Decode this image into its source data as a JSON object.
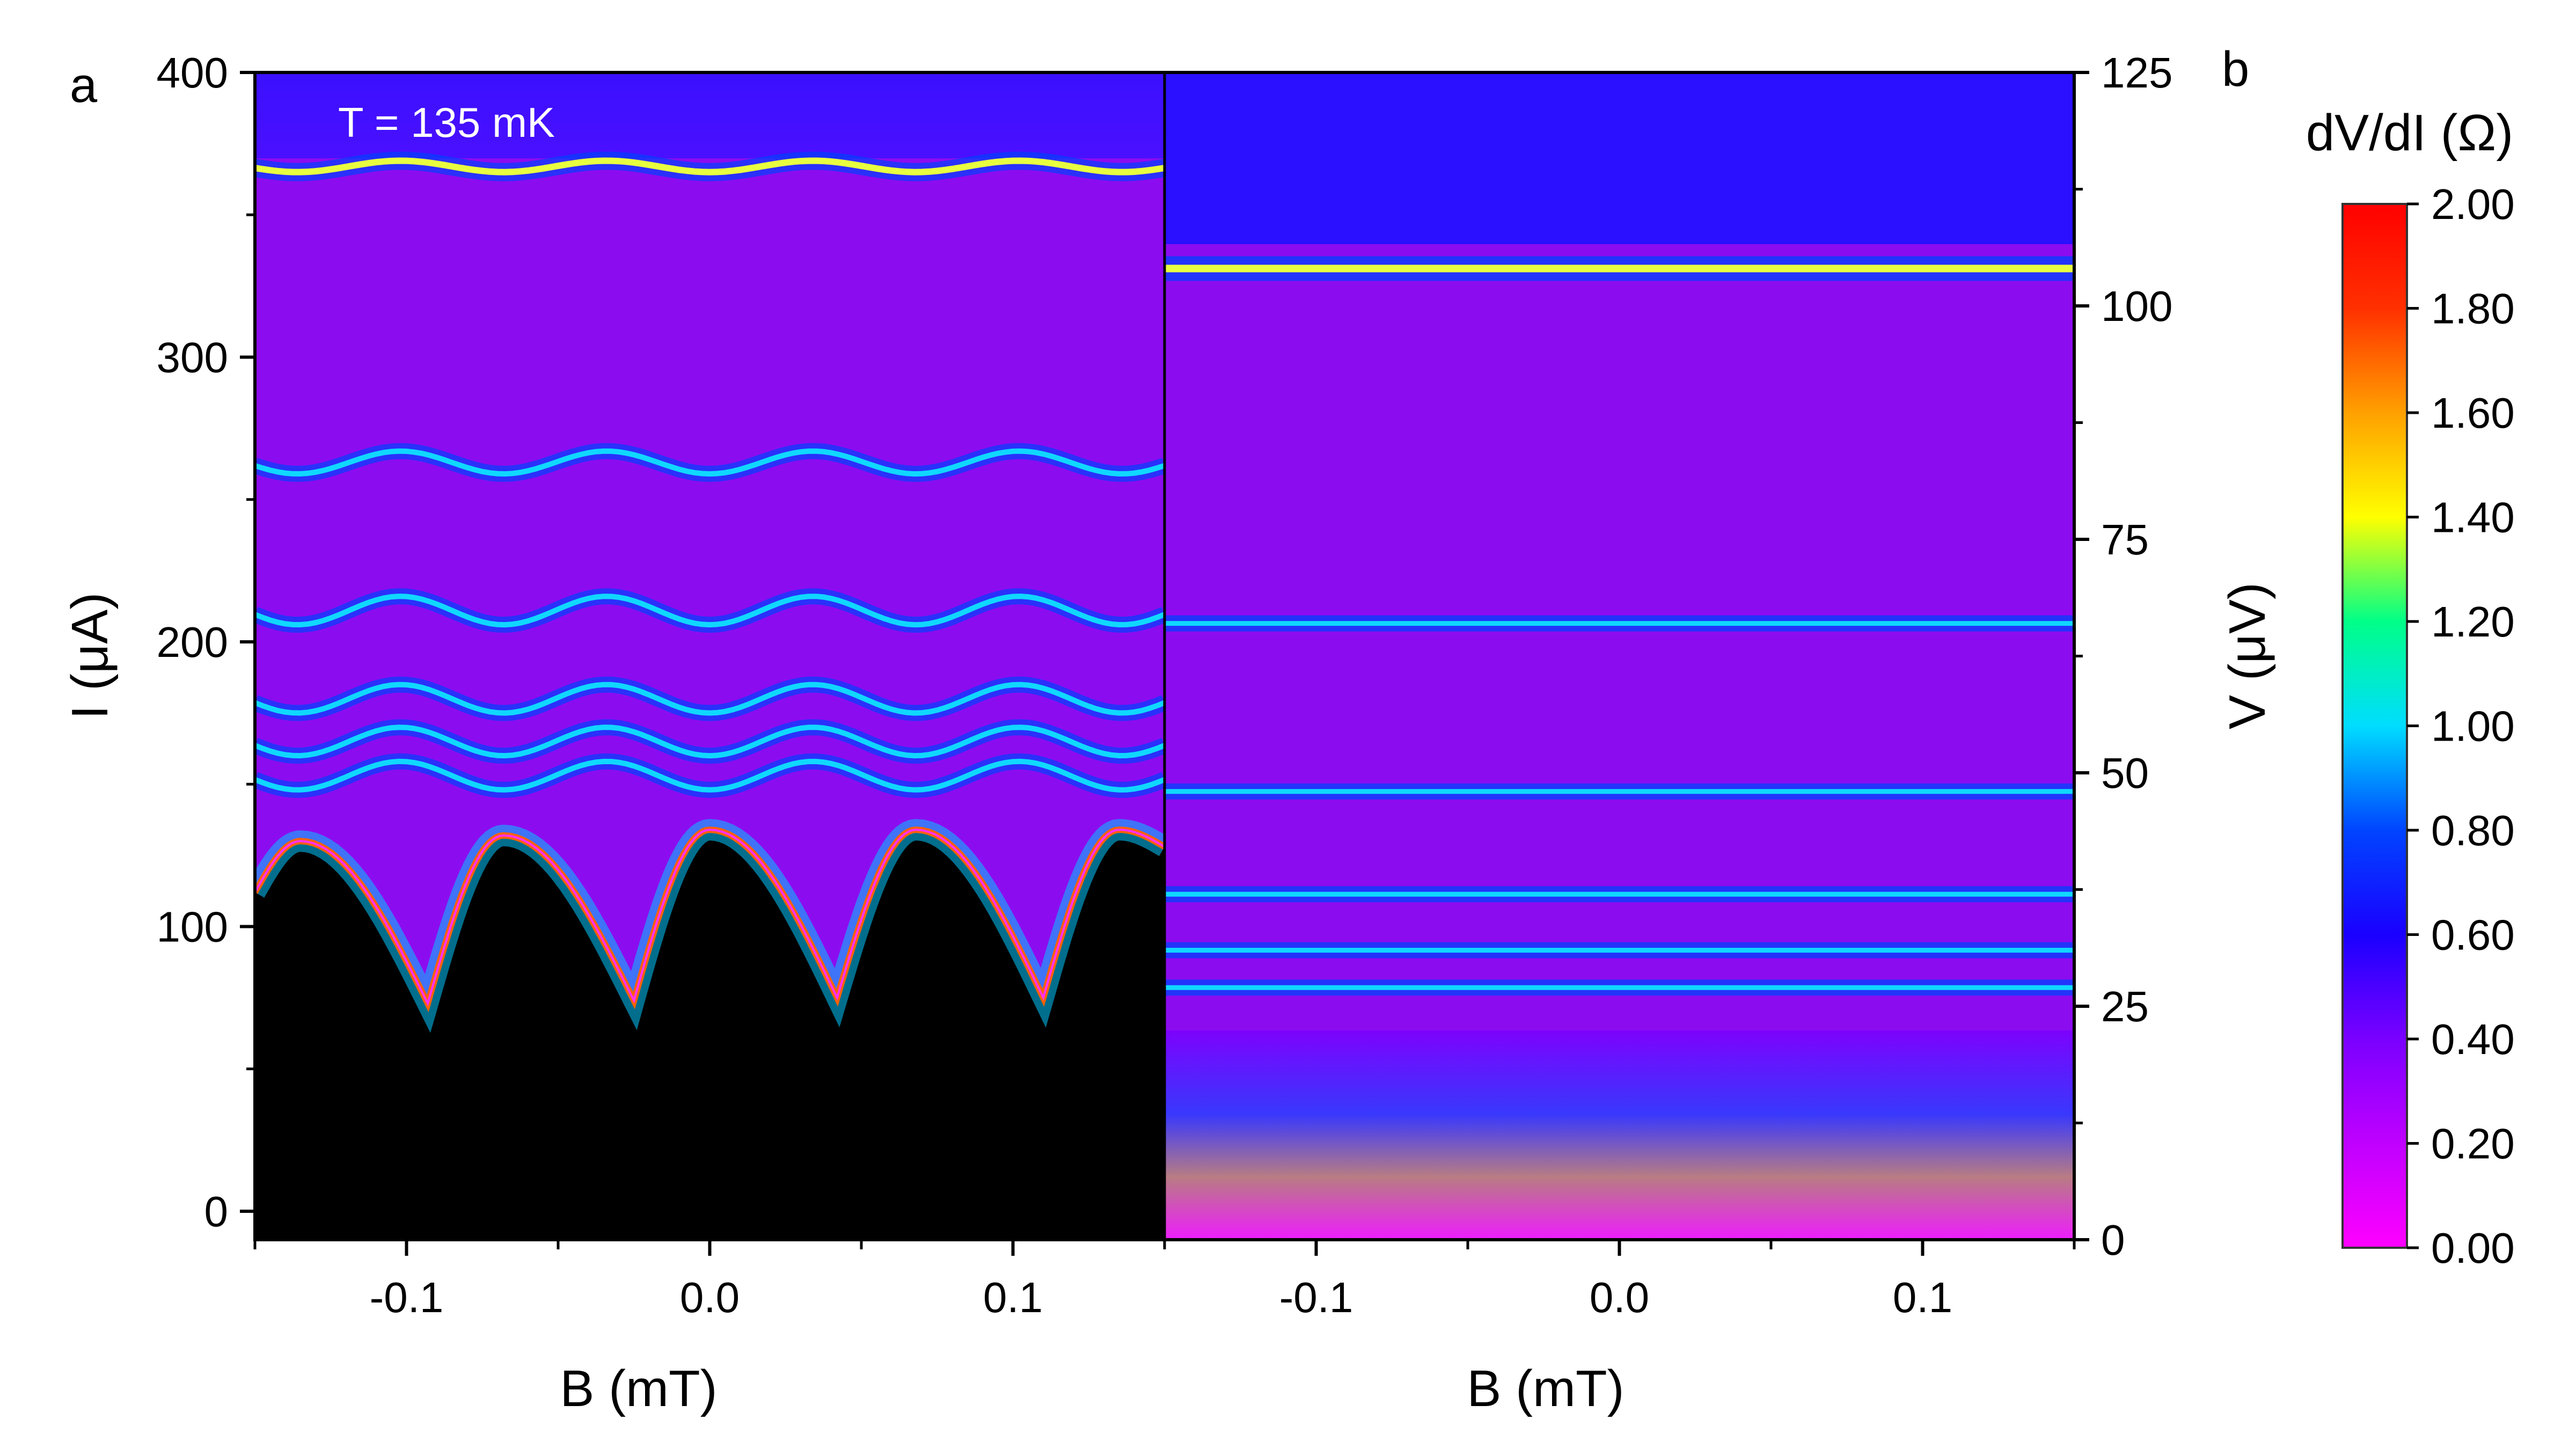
{
  "panel_a_letter": "a",
  "panel_b_letter": "b",
  "annotation": "T = 135 mK",
  "colorbar_title": "dV/dI (Ω)",
  "chart_data": [
    {
      "type": "heatmap",
      "panel": "a",
      "xlabel": "B (mT)",
      "ylabel": "I (μA)",
      "xlim": [
        -0.15,
        0.15
      ],
      "ylim": [
        -10,
        400
      ],
      "x_ticks": [
        -0.1,
        0.0,
        0.1
      ],
      "x_tick_labels": [
        "-0.1",
        "0.0",
        "0.1"
      ],
      "y_ticks": [
        0,
        100,
        200,
        300,
        400
      ],
      "y_tick_labels": [
        "0",
        "100",
        "200",
        "300",
        "400"
      ],
      "switching_current_maxima": [
        {
          "B": -0.135,
          "I": 130
        },
        {
          "B": -0.068,
          "I": 132
        },
        {
          "B": 0.0,
          "I": 134
        },
        {
          "B": 0.068,
          "I": 134
        },
        {
          "B": 0.135,
          "I": 134
        }
      ],
      "switching_current_minima": [
        {
          "B": -0.093,
          "I": 73
        },
        {
          "B": -0.025,
          "I": 74
        },
        {
          "B": 0.042,
          "I": 75
        },
        {
          "B": 0.11,
          "I": 75
        }
      ],
      "resonance_lines_I": [
        367,
        263,
        211,
        180,
        165,
        153
      ],
      "annotation": "T = 135 mK"
    },
    {
      "type": "heatmap",
      "panel": "b",
      "xlabel": "B (mT)",
      "ylabel": "V (μV)",
      "xlim": [
        -0.15,
        0.15
      ],
      "ylim": [
        0,
        125
      ],
      "x_ticks": [
        -0.1,
        0.0,
        0.1
      ],
      "x_tick_labels": [
        "-0.1",
        "0.0",
        "0.1"
      ],
      "y_ticks": [
        0,
        25,
        50,
        75,
        100,
        125
      ],
      "y_tick_labels": [
        "0",
        "25",
        "50",
        "75",
        "100",
        "125"
      ],
      "resonance_lines_V": [
        104,
        66,
        48,
        37,
        31,
        27
      ]
    },
    {
      "type": "colorbar",
      "title": "dV/dI (Ω)",
      "range": [
        0.0,
        2.0
      ],
      "ticks": [
        0.0,
        0.2,
        0.4,
        0.6,
        0.8,
        1.0,
        1.2,
        1.4,
        1.6,
        1.8,
        2.0
      ],
      "tick_labels": [
        "0.00",
        "0.20",
        "0.40",
        "0.60",
        "0.80",
        "1.00",
        "1.20",
        "1.40",
        "1.60",
        "1.80",
        "2.00"
      ],
      "colors": [
        "#ff00ff",
        "#8a00ff",
        "#3a00ff",
        "#0000ff",
        "#0066ff",
        "#00ffff",
        "#00ff66",
        "#ffff00",
        "#ff9900",
        "#ff0000"
      ]
    }
  ]
}
